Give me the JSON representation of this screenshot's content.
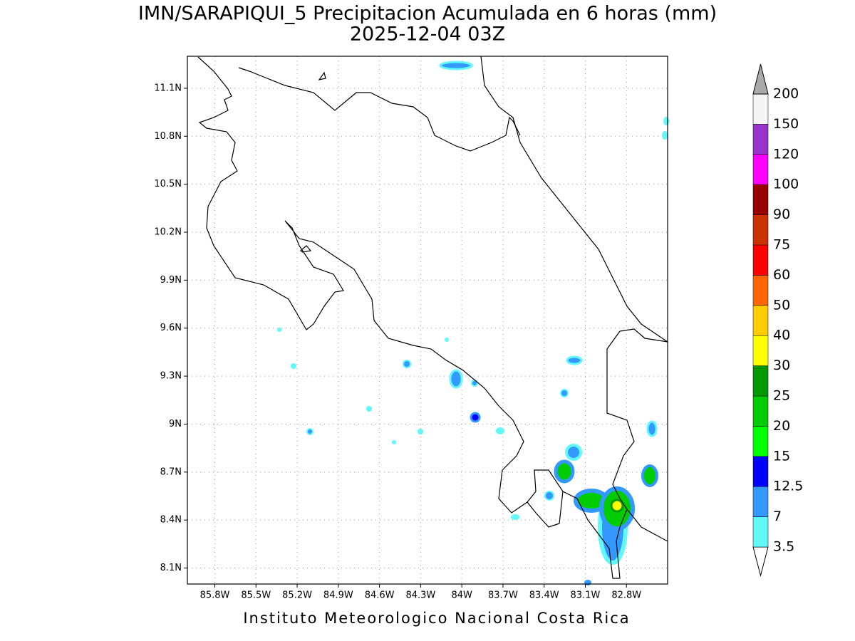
{
  "header": {
    "title": "IMN/SARAPIQUI_5 Precipitacion Acumulada en 6 horas (mm)",
    "subtitle": "2025-12-04 03Z"
  },
  "map": {
    "xlim": [
      -86.0,
      -82.5
    ],
    "ylim": [
      8.0,
      11.3
    ],
    "grid": true,
    "xticks": [
      {
        "value": -85.8,
        "label": "85.8W"
      },
      {
        "value": -85.5,
        "label": "85.5W"
      },
      {
        "value": -85.2,
        "label": "85.2W"
      },
      {
        "value": -84.9,
        "label": "84.9W"
      },
      {
        "value": -84.6,
        "label": "84.6W"
      },
      {
        "value": -84.3,
        "label": "84.3W"
      },
      {
        "value": -84.0,
        "label": "84W"
      },
      {
        "value": -83.7,
        "label": "83.7W"
      },
      {
        "value": -83.4,
        "label": "83.4W"
      },
      {
        "value": -83.1,
        "label": "83.1W"
      },
      {
        "value": -82.8,
        "label": "82.8W"
      }
    ],
    "yticks": [
      {
        "value": 8.1,
        "label": "8.1N"
      },
      {
        "value": 8.4,
        "label": "8.4N"
      },
      {
        "value": 8.7,
        "label": "8.7N"
      },
      {
        "value": 9.0,
        "label": "9N"
      },
      {
        "value": 9.3,
        "label": "9.3N"
      },
      {
        "value": 9.6,
        "label": "9.6N"
      },
      {
        "value": 9.9,
        "label": "9.9N"
      },
      {
        "value": 10.2,
        "label": "10.2N"
      },
      {
        "value": 10.5,
        "label": "10.5N"
      },
      {
        "value": 10.8,
        "label": "10.8N"
      },
      {
        "value": 11.1,
        "label": "11.1N"
      }
    ]
  },
  "colorbar": {
    "levels": [
      3.5,
      7,
      12.5,
      15,
      20,
      25,
      30,
      40,
      50,
      60,
      75,
      90,
      100,
      120,
      150,
      200
    ],
    "colors": [
      "#ffffff",
      "#60f8f8",
      "#3399ff",
      "#0000ff",
      "#00ff00",
      "#00cc00",
      "#009900",
      "#ffff00",
      "#ffcc00",
      "#ff6600",
      "#ff0000",
      "#cc3300",
      "#990000",
      "#ff00ff",
      "#9933cc",
      "#f4f4f4",
      "#aaaaaa"
    ]
  },
  "footer": "Instituto Meteorologico Nacional Costa Rica"
}
